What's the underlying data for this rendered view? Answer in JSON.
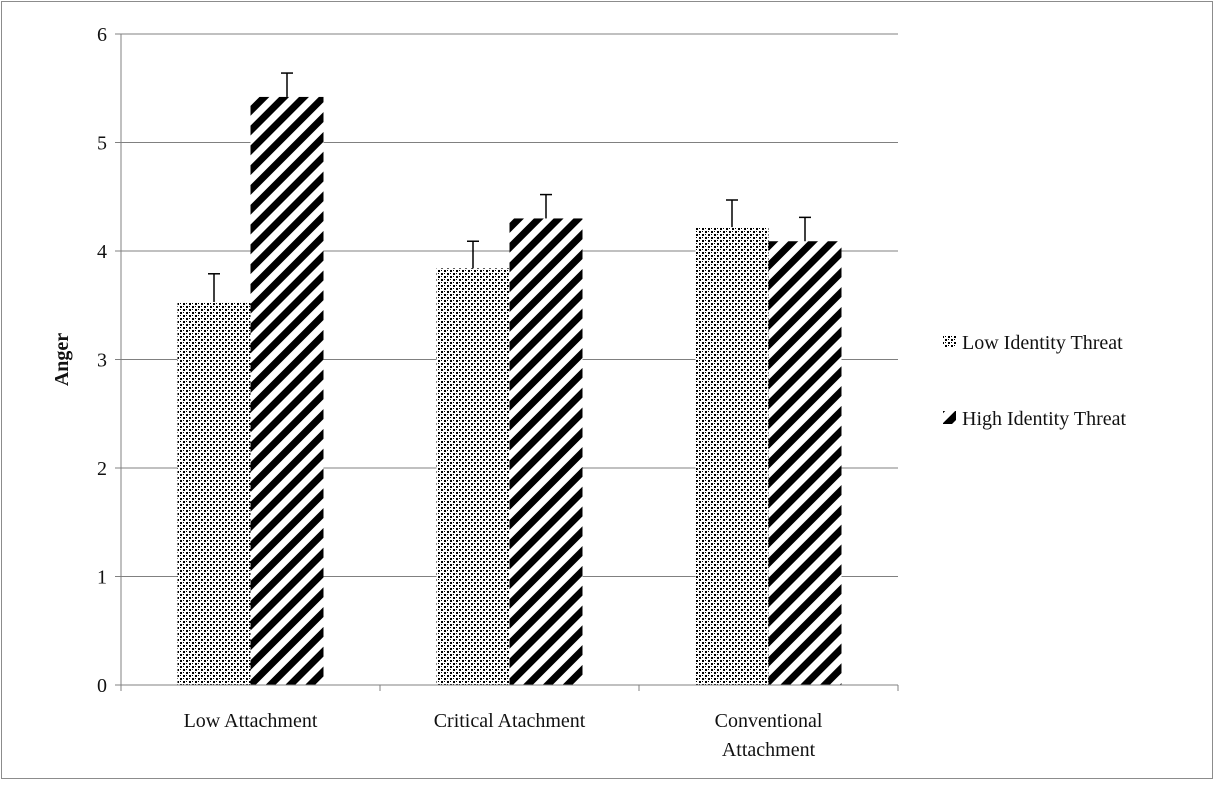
{
  "chart_data": {
    "type": "bar",
    "title": "",
    "xlabel": "",
    "ylabel": "Anger",
    "ylim": [
      0,
      6
    ],
    "yticks": [
      "0",
      "1",
      "2",
      "3",
      "4",
      "5",
      "6"
    ],
    "grid": true,
    "legend_position": "right",
    "categories": [
      [
        "Low Attachment"
      ],
      [
        "Critical Atachment"
      ],
      [
        "Conventional",
        "Attachment"
      ]
    ],
    "series": [
      {
        "name": "Low Identity Threat",
        "pattern": "checker-dots",
        "values": [
          3.53,
          3.84,
          4.22
        ],
        "error": [
          0.26,
          0.25,
          0.25
        ]
      },
      {
        "name": "High Identity Threat",
        "pattern": "diagonal-stripes",
        "values": [
          5.42,
          4.3,
          4.09
        ],
        "error": [
          0.22,
          0.22,
          0.22
        ]
      }
    ],
    "colors": {
      "bar_pattern_dark": "#000000",
      "bar_pattern_light": "#ffffff",
      "gridline": "#808080",
      "axis": "#808080",
      "error_bar": "#000000"
    }
  }
}
